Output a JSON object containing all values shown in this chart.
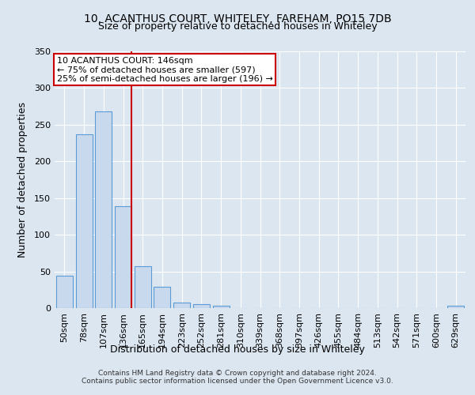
{
  "title": "10, ACANTHUS COURT, WHITELEY, FAREHAM, PO15 7DB",
  "subtitle": "Size of property relative to detached houses in Whiteley",
  "xlabel": "Distribution of detached houses by size in Whiteley",
  "ylabel": "Number of detached properties",
  "footnote1": "Contains HM Land Registry data © Crown copyright and database right 2024.",
  "footnote2": "Contains public sector information licensed under the Open Government Licence v3.0.",
  "categories": [
    "50sqm",
    "78sqm",
    "107sqm",
    "136sqm",
    "165sqm",
    "194sqm",
    "223sqm",
    "252sqm",
    "281sqm",
    "310sqm",
    "339sqm",
    "368sqm",
    "397sqm",
    "426sqm",
    "455sqm",
    "484sqm",
    "513sqm",
    "542sqm",
    "571sqm",
    "600sqm",
    "629sqm"
  ],
  "values": [
    44,
    237,
    268,
    139,
    57,
    29,
    8,
    5,
    3,
    0,
    0,
    0,
    0,
    0,
    0,
    0,
    0,
    0,
    0,
    0,
    3
  ],
  "bar_color": "#c8d9ee",
  "bar_edge_color": "#5b9bd5",
  "vline_x_index": 3,
  "vline_color": "#cc0000",
  "annotation_line1": "10 ACANTHUS COURT: 146sqm",
  "annotation_line2": "← 75% of detached houses are smaller (597)",
  "annotation_line3": "25% of semi-detached houses are larger (196) →",
  "annotation_box_color": "#ffffff",
  "annotation_box_edge": "#cc0000",
  "background_color": "#dce6f1",
  "plot_bg_color": "#dce6f1",
  "ylim": [
    0,
    350
  ],
  "yticks": [
    0,
    50,
    100,
    150,
    200,
    250,
    300,
    350
  ],
  "title_fontsize": 10,
  "subtitle_fontsize": 9,
  "ylabel_fontsize": 9,
  "xlabel_fontsize": 9,
  "tick_fontsize": 8,
  "annot_fontsize": 8,
  "footnote_fontsize": 6.5
}
